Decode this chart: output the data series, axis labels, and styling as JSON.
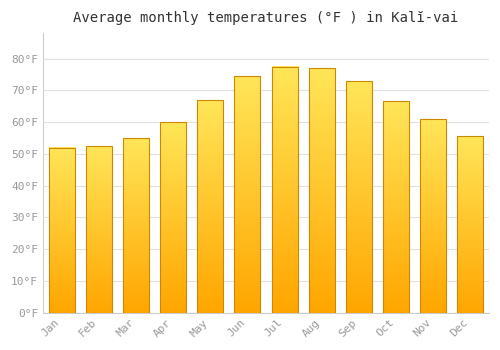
{
  "title": "Average monthly temperatures (°F ) in Kalĭ-vai",
  "months": [
    "Jan",
    "Feb",
    "Mar",
    "Apr",
    "May",
    "Jun",
    "Jul",
    "Aug",
    "Sep",
    "Oct",
    "Nov",
    "Dec"
  ],
  "values": [
    52,
    52.5,
    55,
    60,
    67,
    74.5,
    77.5,
    77,
    73,
    66.5,
    61,
    55.5
  ],
  "bar_color_top": "#FFE066",
  "bar_color_bottom": "#FFA500",
  "bar_edge_color": "#CC8800",
  "background_color": "#FFFFFF",
  "plot_bg_color": "#FFFFFF",
  "grid_color": "#E0E0E0",
  "ylim": [
    0,
    88
  ],
  "yticks": [
    0,
    10,
    20,
    30,
    40,
    50,
    60,
    70,
    80
  ],
  "ytick_labels": [
    "0°F",
    "10°F",
    "20°F",
    "30°F",
    "40°F",
    "50°F",
    "60°F",
    "70°F",
    "80°F"
  ],
  "tick_color": "#999999",
  "title_fontsize": 10,
  "tick_fontsize": 8,
  "font_family": "monospace",
  "bar_width": 0.7,
  "spine_color": "#CCCCCC"
}
